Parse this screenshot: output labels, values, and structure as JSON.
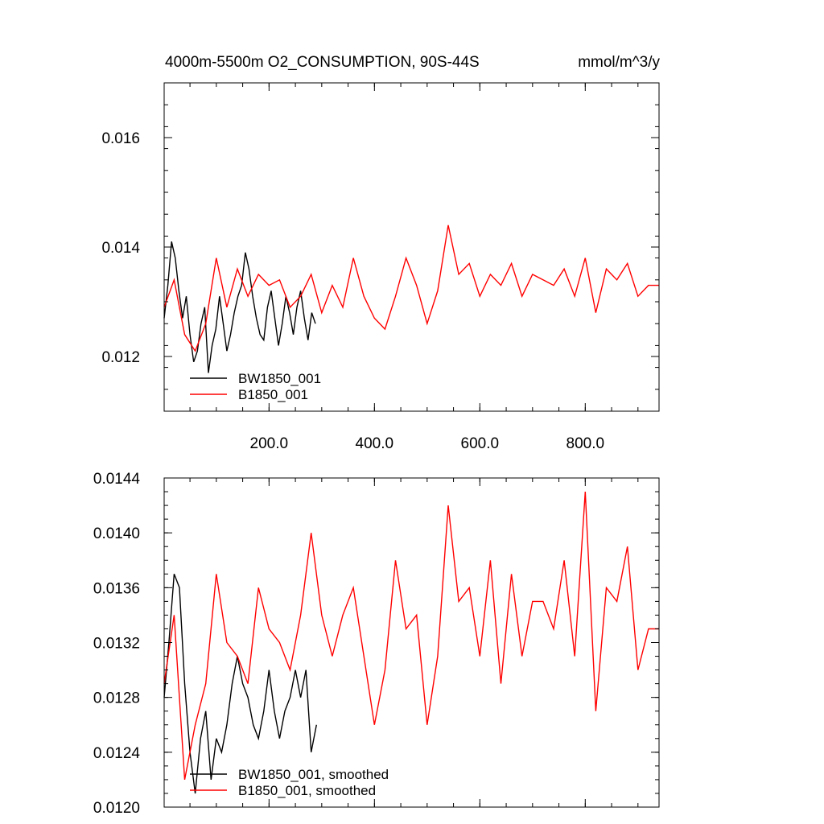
{
  "chart_data": [
    {
      "type": "line",
      "title_left": "4000m-5500m O2_CONSUMPTION, 90S-44S",
      "title_right": "mmol/m^3/y",
      "xlim": [
        1,
        940
      ],
      "ylim": [
        0.011,
        0.017
      ],
      "y_ticks": [
        0.012,
        0.014,
        0.016
      ],
      "y_tick_labels": [
        "0.012",
        "0.014",
        "0.016"
      ],
      "x_ticks": [
        200,
        400,
        600,
        800
      ],
      "x_tick_labels": [
        "200.0",
        "400.0",
        "600.0",
        "800.0"
      ],
      "legend_position": "bottom-left",
      "series": [
        {
          "name": "BW1850_001",
          "color": "#000000",
          "x": [
            1,
            8,
            15,
            22,
            29,
            36,
            43,
            50,
            57,
            64,
            71,
            78,
            85,
            92,
            99,
            106,
            113,
            120,
            127,
            134,
            141,
            148,
            155,
            162,
            169,
            176,
            183,
            190,
            197,
            204,
            211,
            218,
            225,
            232,
            239,
            246,
            253,
            260,
            267,
            274,
            281,
            288
          ],
          "values": [
            0.0127,
            0.0133,
            0.0141,
            0.0138,
            0.0132,
            0.0127,
            0.0131,
            0.0124,
            0.0119,
            0.0121,
            0.0126,
            0.0129,
            0.0117,
            0.0122,
            0.0125,
            0.0131,
            0.0126,
            0.0121,
            0.0124,
            0.0128,
            0.0131,
            0.0133,
            0.0139,
            0.0136,
            0.0131,
            0.0127,
            0.0124,
            0.0123,
            0.0129,
            0.0132,
            0.0127,
            0.0122,
            0.0126,
            0.0131,
            0.0128,
            0.0124,
            0.0129,
            0.0132,
            0.0127,
            0.0123,
            0.0128,
            0.0126
          ]
        },
        {
          "name": "B1850_001",
          "color": "#ff0000",
          "x": [
            1,
            20,
            40,
            60,
            80,
            100,
            120,
            140,
            160,
            180,
            200,
            220,
            240,
            260,
            280,
            300,
            320,
            340,
            360,
            380,
            400,
            420,
            440,
            460,
            480,
            500,
            520,
            540,
            560,
            580,
            600,
            620,
            640,
            660,
            680,
            700,
            720,
            740,
            760,
            780,
            800,
            820,
            840,
            860,
            880,
            900,
            920,
            940
          ],
          "values": [
            0.0129,
            0.0134,
            0.0124,
            0.0121,
            0.0126,
            0.0138,
            0.0129,
            0.0136,
            0.0131,
            0.0135,
            0.0133,
            0.0134,
            0.0129,
            0.0131,
            0.0135,
            0.0128,
            0.0133,
            0.0129,
            0.0138,
            0.0131,
            0.0127,
            0.0125,
            0.0131,
            0.0138,
            0.0133,
            0.0126,
            0.0132,
            0.0144,
            0.0135,
            0.0137,
            0.0131,
            0.0135,
            0.0133,
            0.0137,
            0.0131,
            0.0135,
            0.0134,
            0.0133,
            0.0136,
            0.0131,
            0.0138,
            0.0128,
            0.0136,
            0.0134,
            0.0137,
            0.0131,
            0.0133,
            0.0133
          ]
        }
      ]
    },
    {
      "type": "line",
      "xlim": [
        1,
        940
      ],
      "ylim": [
        0.012,
        0.0144
      ],
      "y_ticks": [
        0.012,
        0.0124,
        0.0128,
        0.0132,
        0.0136,
        0.014,
        0.0144
      ],
      "y_tick_labels": [
        "0.0120",
        "0.0124",
        "0.0128",
        "0.0132",
        "0.0136",
        "0.0140",
        "0.0144"
      ],
      "x_ticks": [
        200,
        400,
        600,
        800
      ],
      "legend_position": "bottom-left",
      "series": [
        {
          "name": "BW1850_001, smoothed",
          "color": "#000000",
          "x": [
            1,
            10,
            20,
            30,
            40,
            50,
            60,
            70,
            80,
            90,
            100,
            110,
            120,
            130,
            140,
            150,
            160,
            170,
            180,
            190,
            200,
            210,
            220,
            230,
            240,
            250,
            260,
            270,
            280,
            290
          ],
          "values": [
            0.0128,
            0.0132,
            0.0137,
            0.0136,
            0.0129,
            0.0124,
            0.0121,
            0.0125,
            0.0127,
            0.0122,
            0.0125,
            0.0124,
            0.0126,
            0.0129,
            0.0131,
            0.0129,
            0.0128,
            0.0126,
            0.0125,
            0.0127,
            0.013,
            0.0127,
            0.0125,
            0.0127,
            0.0128,
            0.013,
            0.0128,
            0.013,
            0.0124,
            0.0126
          ]
        },
        {
          "name": "B1850_001, smoothed",
          "color": "#ff0000",
          "x": [
            1,
            20,
            40,
            60,
            80,
            100,
            120,
            140,
            160,
            180,
            200,
            220,
            240,
            260,
            280,
            300,
            320,
            340,
            360,
            380,
            400,
            420,
            440,
            460,
            480,
            500,
            520,
            540,
            560,
            580,
            600,
            620,
            640,
            660,
            680,
            700,
            720,
            740,
            760,
            780,
            800,
            820,
            840,
            860,
            880,
            900,
            920,
            940
          ],
          "values": [
            0.0129,
            0.0134,
            0.0122,
            0.0126,
            0.0129,
            0.0137,
            0.0132,
            0.0131,
            0.0129,
            0.0136,
            0.0133,
            0.0132,
            0.013,
            0.0134,
            0.014,
            0.0134,
            0.0131,
            0.0134,
            0.0136,
            0.0131,
            0.0126,
            0.013,
            0.0138,
            0.0133,
            0.0134,
            0.0126,
            0.0131,
            0.0142,
            0.0135,
            0.0136,
            0.0131,
            0.0138,
            0.0129,
            0.0137,
            0.0131,
            0.0135,
            0.0135,
            0.0133,
            0.0138,
            0.0131,
            0.0143,
            0.0127,
            0.0136,
            0.0135,
            0.0139,
            0.013,
            0.0133,
            0.0133
          ]
        }
      ]
    }
  ]
}
